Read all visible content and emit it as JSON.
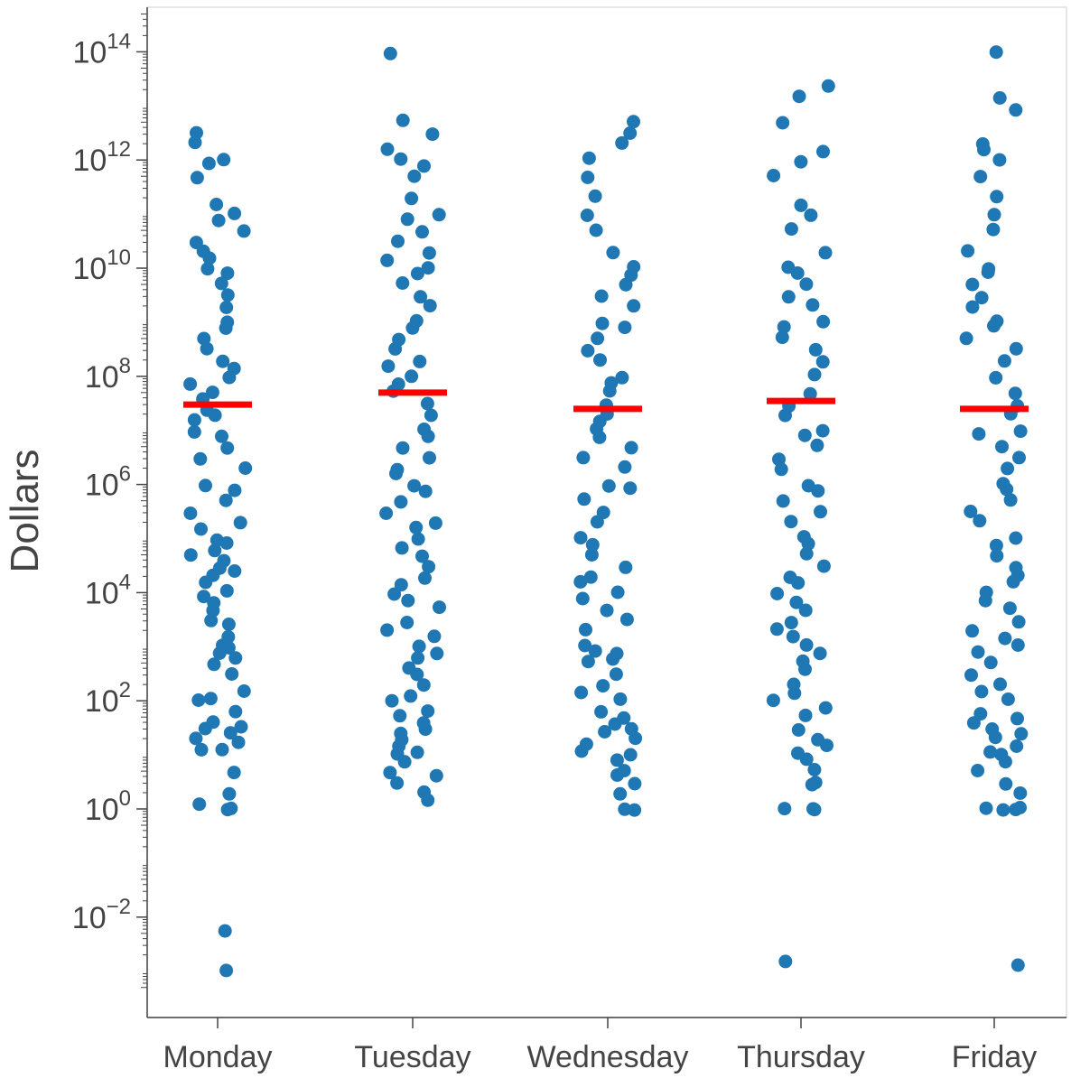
{
  "chart_data": {
    "type": "scatter",
    "ylabel": "Dollars",
    "xlabel": "",
    "y_scale": "log10",
    "ylim": [
      0.0005,
      500000000000000
    ],
    "y_ticks": [
      {
        "value": 0.01,
        "base": "10",
        "exp": "−2"
      },
      {
        "value": 1,
        "base": "10",
        "exp": "0"
      },
      {
        "value": 100,
        "base": "10",
        "exp": "2"
      },
      {
        "value": 10000,
        "base": "10",
        "exp": "4"
      },
      {
        "value": 1000000,
        "base": "10",
        "exp": "6"
      },
      {
        "value": 100000000,
        "base": "10",
        "exp": "8"
      },
      {
        "value": 10000000000,
        "base": "10",
        "exp": "10"
      },
      {
        "value": 1000000000000,
        "base": "10",
        "exp": "12"
      },
      {
        "value": 100000000000000,
        "base": "10",
        "exp": "14"
      }
    ],
    "categories": [
      "Monday",
      "Tuesday",
      "Wednesday",
      "Thursday",
      "Friday"
    ],
    "marker_color": "#1f77b4",
    "median_color": "#ff0000",
    "grid": false,
    "legend": "none",
    "series": [
      {
        "category": "Monday",
        "median": 30000000,
        "values": [
          0.001,
          0.006,
          1,
          1.3,
          2,
          1,
          4.5,
          12,
          13,
          18,
          20,
          25,
          30,
          35,
          40,
          60,
          100,
          110,
          150,
          300,
          500,
          600,
          800,
          900,
          1000,
          1500,
          2500,
          3000,
          5000,
          6000,
          8000,
          10000,
          15000,
          20000,
          25000,
          30000,
          40000,
          50000,
          60000,
          80000,
          100000,
          150000,
          200000,
          300000,
          500000,
          800000,
          1000000,
          2000000,
          3000000,
          5000000,
          8000000,
          10000000,
          15000000,
          20000000,
          25000000,
          40000000,
          50000000,
          70000000,
          100000000,
          150000000,
          200000000,
          300000000,
          500000000,
          800000000,
          1000000000,
          2000000000,
          3000000000,
          5000000000,
          8000000000,
          10000000000,
          15000000000,
          20000000000,
          30000000000,
          50000000000,
          80000000000,
          100000000000,
          150000000000,
          500000000000,
          800000000000,
          1000000000000,
          2000000000000,
          3000000000000
        ]
      },
      {
        "category": "Tuesday",
        "median": 50000000,
        "values": [
          1.5,
          2,
          3,
          4,
          5,
          8,
          10,
          12,
          15,
          20,
          25,
          30,
          40,
          50,
          60,
          100,
          120,
          200,
          300,
          400,
          600,
          800,
          1000,
          1500,
          2000,
          3000,
          5000,
          7000,
          10000,
          15000,
          20000,
          30000,
          50000,
          70000,
          100000,
          150000,
          200000,
          300000,
          500000,
          800000,
          1000000,
          1500000,
          2000000,
          3000000,
          5000000,
          8000000,
          10000000,
          20000000,
          30000000,
          50000000,
          70000000,
          100000000,
          150000000,
          200000000,
          300000000,
          500000000,
          800000000,
          1000000000,
          2000000000,
          3000000000,
          5000000000,
          8000000000,
          10000000000,
          15000000000,
          20000000000,
          30000000000,
          50000000000,
          80000000000,
          100000000000,
          200000000000,
          500000000000,
          800000000000,
          1000000000000,
          1500000000000,
          3000000000000,
          5000000000000,
          100000000000000
        ]
      },
      {
        "category": "Wednesday",
        "median": 25000000,
        "values": [
          1,
          1,
          2,
          3,
          4,
          5,
          8,
          10,
          12,
          15,
          20,
          25,
          30,
          40,
          50,
          60,
          100,
          150,
          200,
          300,
          500,
          600,
          700,
          800,
          1000,
          2000,
          3000,
          5000,
          8000,
          10000,
          15000,
          20000,
          30000,
          50000,
          80000,
          100000,
          200000,
          300000,
          500000,
          800000,
          1000000,
          2000000,
          3000000,
          5000000,
          8000000,
          10000000,
          15000000,
          20000000,
          30000000,
          50000000,
          80000000,
          100000000,
          200000000,
          300000000,
          500000000,
          800000000,
          1000000000,
          2000000000,
          3000000000,
          5000000000,
          8000000000,
          10000000000,
          20000000000,
          50000000000,
          100000000000,
          200000000000,
          500000000000,
          1000000000000,
          2000000000000,
          3000000000000,
          5000000000000
        ]
      },
      {
        "category": "Thursday",
        "median": 35000000,
        "values": [
          0.0015,
          1,
          1,
          1,
          3,
          3,
          5,
          8,
          10,
          15,
          20,
          30,
          50,
          70,
          100,
          130,
          200,
          400,
          500,
          700,
          1000,
          1500,
          2000,
          3000,
          5000,
          7000,
          10000,
          15000,
          20000,
          30000,
          50000,
          80000,
          100000,
          200000,
          300000,
          500000,
          800000,
          1000000,
          2000000,
          3000000,
          5000000,
          8000000,
          10000000,
          20000000,
          30000000,
          50000000,
          100000000,
          200000000,
          300000000,
          500000000,
          800000000,
          1000000000,
          2000000000,
          3000000000,
          5000000000,
          8000000000,
          10000000000,
          20000000000,
          50000000000,
          100000000000,
          150000000000,
          500000000000,
          1000000000000,
          1500000000000,
          5000000000000,
          15000000000000,
          25000000000000
        ]
      },
      {
        "category": "Friday",
        "median": 25000000,
        "values": [
          0.0012,
          1,
          1,
          1,
          1,
          2,
          3,
          5,
          8,
          10,
          12,
          15,
          20,
          25,
          30,
          40,
          50,
          60,
          100,
          150,
          200,
          300,
          500,
          800,
          1000,
          1500,
          2000,
          3000,
          5000,
          7000,
          10000,
          15000,
          20000,
          30000,
          50000,
          80000,
          100000,
          200000,
          300000,
          500000,
          800000,
          1000000,
          2000000,
          3000000,
          5000000,
          8000000,
          10000000,
          20000000,
          30000000,
          50000000,
          100000000,
          200000000,
          300000000,
          500000000,
          800000000,
          1000000000,
          2000000000,
          3000000000,
          5000000000,
          8000000000,
          10000000000,
          20000000000,
          50000000000,
          100000000000,
          200000000000,
          500000000000,
          1000000000000,
          1500000000000,
          2000000000000,
          8000000000000,
          15000000000000,
          100000000000000
        ]
      }
    ]
  }
}
